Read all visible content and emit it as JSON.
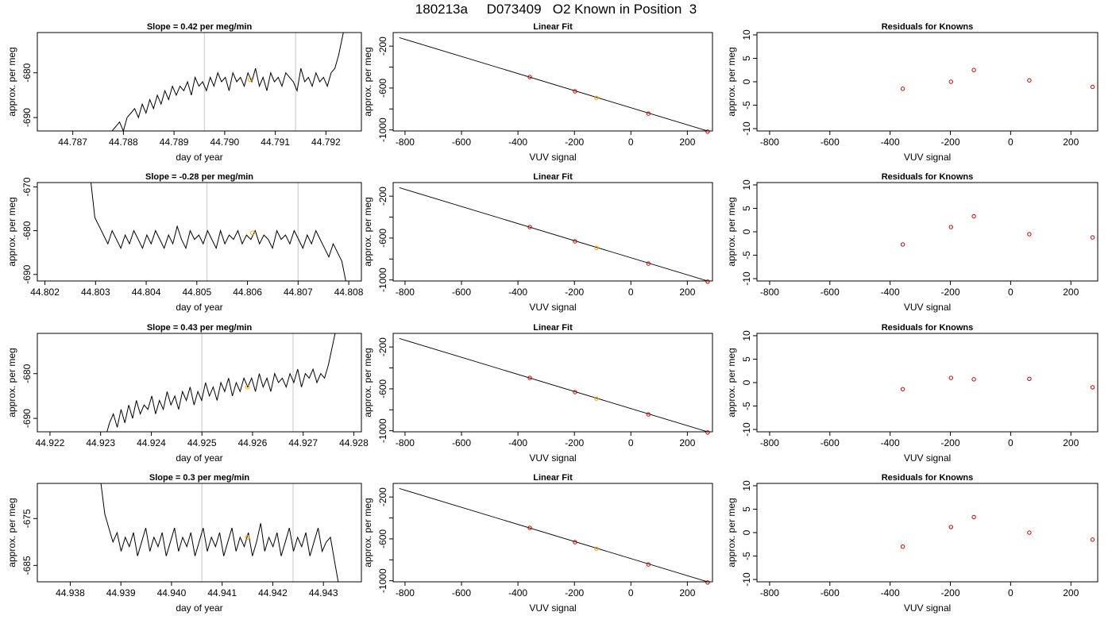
{
  "page": {
    "title": "180213a     D073409   O2 Known in Position  3"
  },
  "colors": {
    "line": "#000000",
    "vline": "#d3d3d3",
    "marker": "#ffa500",
    "residual": "#cc0000"
  },
  "chart_data": [
    {
      "type": "line",
      "title": "Slope =  0.42  per meg/min",
      "xlabel": "day of year",
      "ylabel": "approx. per meg",
      "xlim": [
        44.7863,
        44.7927
      ],
      "ylim": [
        -693.0,
        -671.0
      ],
      "xticks": [
        44.787,
        44.788,
        44.789,
        44.79,
        44.791,
        44.792
      ],
      "xtick_labels": [
        "44.787",
        "44.788",
        "44.789",
        "44.790",
        "44.791",
        "44.792"
      ],
      "yticks": [
        -680,
        -690
      ],
      "ytick_labels": [
        "-680",
        "-690"
      ],
      "vlines": [
        44.7896,
        44.7914
      ],
      "marker": {
        "x": 44.7905,
        "y": -681.5
      },
      "series": [
        {
          "x_start": 44.7877,
          "x_end": 44.7924,
          "values": [
            -694,
            -693,
            -692,
            -691,
            -693,
            -690,
            -689,
            -688,
            -690,
            -687,
            -689,
            -686,
            -688,
            -685,
            -687,
            -684,
            -686,
            -683,
            -685,
            -683,
            -684,
            -682,
            -685,
            -681,
            -683,
            -682,
            -684,
            -681,
            -683,
            -680,
            -682,
            -681,
            -684,
            -680,
            -682,
            -681,
            -683,
            -680,
            -682,
            -679,
            -683,
            -681,
            -684,
            -680,
            -682,
            -681,
            -683,
            -680,
            -681,
            -682,
            -684,
            -679,
            -682,
            -681,
            -683,
            -680,
            -682,
            -681,
            -683,
            -680,
            -679,
            -676,
            -672,
            -668
          ]
        }
      ]
    },
    {
      "type": "line",
      "title": "Slope =  -0.28  per meg/min",
      "xlabel": "day of year",
      "ylabel": "approx. per meg",
      "xlim": [
        44.80185,
        44.80825
      ],
      "ylim": [
        -691.5,
        -669.0
      ],
      "xticks": [
        44.802,
        44.803,
        44.804,
        44.805,
        44.806,
        44.807,
        44.808
      ],
      "xtick_labels": [
        "44.802",
        "44.803",
        "44.804",
        "44.805",
        "44.806",
        "44.807",
        "44.808"
      ],
      "yticks": [
        -670,
        -680,
        -690
      ],
      "ytick_labels": [
        "-670",
        "-680",
        "-690"
      ],
      "vlines": [
        44.8052,
        44.807
      ],
      "marker": {
        "x": 44.8061,
        "y": -680.5
      },
      "series": [
        {
          "x_start": 44.8029,
          "x_end": 44.80795,
          "values": [
            -668,
            -677,
            -679,
            -681,
            -683,
            -680,
            -682,
            -684,
            -681,
            -683,
            -680,
            -682,
            -684,
            -681,
            -683,
            -680,
            -682,
            -684,
            -681,
            -683,
            -679,
            -682,
            -684,
            -680,
            -682,
            -681,
            -683,
            -680,
            -682,
            -684,
            -680,
            -683,
            -681,
            -682,
            -680,
            -683,
            -681,
            -682,
            -680,
            -683,
            -681,
            -682,
            -684,
            -680,
            -682,
            -681,
            -683,
            -680,
            -682,
            -684,
            -681,
            -683,
            -680,
            -682,
            -684,
            -686,
            -683,
            -685,
            -687,
            -692
          ]
        }
      ]
    },
    {
      "type": "line",
      "title": "Slope =  0.43  per meg/min",
      "xlabel": "day of year",
      "ylabel": "approx. per meg",
      "xlim": [
        44.92175,
        44.92815
      ],
      "ylim": [
        -693.0,
        -671.0
      ],
      "xticks": [
        44.922,
        44.923,
        44.924,
        44.925,
        44.926,
        44.927,
        44.928
      ],
      "xtick_labels": [
        "44.922",
        "44.923",
        "44.924",
        "44.925",
        "44.926",
        "44.927",
        "44.928"
      ],
      "yticks": [
        -680,
        -690
      ],
      "ytick_labels": [
        "-680",
        "-690"
      ],
      "vlines": [
        44.925,
        44.9268
      ],
      "marker": {
        "x": 44.9259,
        "y": -683
      },
      "series": [
        {
          "x_start": 44.9231,
          "x_end": 44.92765,
          "values": [
            -694,
            -691,
            -689,
            -692,
            -688,
            -691,
            -687,
            -690,
            -686,
            -689,
            -687,
            -688,
            -685,
            -689,
            -686,
            -688,
            -684,
            -687,
            -685,
            -688,
            -684,
            -686,
            -683,
            -687,
            -684,
            -686,
            -682,
            -685,
            -683,
            -686,
            -682,
            -684,
            -681,
            -685,
            -682,
            -684,
            -681,
            -683,
            -681,
            -684,
            -680,
            -683,
            -681,
            -684,
            -680,
            -682,
            -681,
            -683,
            -680,
            -682,
            -679,
            -683,
            -680,
            -681,
            -679,
            -682,
            -680,
            -681,
            -678,
            -674,
            -670
          ]
        }
      ]
    },
    {
      "type": "line",
      "title": "Slope =  0.3  per meg/min",
      "xlabel": "day of year",
      "ylabel": "approx. per meg",
      "xlim": [
        44.93735,
        44.94375
      ],
      "ylim": [
        -688.5,
        -667.5
      ],
      "xticks": [
        44.938,
        44.939,
        44.94,
        44.941,
        44.942,
        44.943
      ],
      "xtick_labels": [
        "44.938",
        "44.939",
        "44.940",
        "44.941",
        "44.942",
        "44.943"
      ],
      "yticks": [
        -675,
        -685
      ],
      "ytick_labels": [
        "-675",
        "-685"
      ],
      "vlines": [
        44.9406,
        44.9424
      ],
      "marker": {
        "x": 44.9415,
        "y": -679
      },
      "series": [
        {
          "x_start": 44.9386,
          "x_end": 44.9433,
          "values": [
            -667,
            -674,
            -677,
            -680,
            -678,
            -682,
            -679,
            -681,
            -678,
            -683,
            -680,
            -677,
            -682,
            -679,
            -681,
            -678,
            -683,
            -680,
            -677,
            -682,
            -679,
            -681,
            -678,
            -683,
            -680,
            -677,
            -682,
            -679,
            -681,
            -678,
            -683,
            -680,
            -677,
            -682,
            -679,
            -681,
            -678,
            -683,
            -680,
            -676,
            -682,
            -679,
            -681,
            -678,
            -683,
            -680,
            -677,
            -682,
            -679,
            -681,
            -678,
            -683,
            -680,
            -677,
            -682,
            -680,
            -679,
            -684,
            -689
          ]
        }
      ]
    },
    {
      "type": "scatter",
      "title": "Linear Fit",
      "xlabel": "VUV signal",
      "ylabel": "approx. per meg",
      "xlim": [
        -842,
        289
      ],
      "ylim": [
        -1010,
        -70
      ],
      "xticks": [
        -800,
        -600,
        -400,
        -200,
        0,
        200
      ],
      "xtick_labels": [
        "-800",
        "-600",
        "-400",
        "-200",
        "0",
        "200"
      ],
      "yticks": [
        -200,
        -400,
        -600,
        -800,
        -1000
      ],
      "ytick_labels": [
        "-200",
        "",
        "-600",
        "",
        "-1000"
      ],
      "fit_line": [
        [
          -820,
          -119
        ],
        [
          272,
          -1010
        ]
      ],
      "x": [
        -358,
        -198,
        -122,
        62,
        272
      ],
      "y": [
        -495,
        -631,
        -693,
        -844,
        -1016
      ],
      "highlight_index": 2
    },
    {
      "type": "scatter",
      "title": "Linear Fit",
      "xlabel": "VUV signal",
      "ylabel": "approx. per meg",
      "xlim": [
        -842,
        289
      ],
      "ylim": [
        -1010,
        -70
      ],
      "xticks": [
        -800,
        -600,
        -400,
        -200,
        0,
        200
      ],
      "xtick_labels": [
        "-800",
        "-600",
        "-400",
        "-200",
        "0",
        "200"
      ],
      "yticks": [
        -200,
        -400,
        -600,
        -800,
        -1000
      ],
      "ytick_labels": [
        "-200",
        "",
        "-600",
        "",
        "-1000"
      ],
      "fit_line": [
        [
          -820,
          -119
        ],
        [
          272,
          -1010
        ]
      ],
      "x": [
        -358,
        -198,
        -122,
        62,
        272
      ],
      "y": [
        -495,
        -631,
        -693,
        -844,
        -1016
      ],
      "highlight_index": 2
    },
    {
      "type": "scatter",
      "title": "Linear Fit",
      "xlabel": "VUV signal",
      "ylabel": "approx. per meg",
      "xlim": [
        -842,
        289
      ],
      "ylim": [
        -1010,
        -70
      ],
      "xticks": [
        -800,
        -600,
        -400,
        -200,
        0,
        200
      ],
      "xtick_labels": [
        "-800",
        "-600",
        "-400",
        "-200",
        "0",
        "200"
      ],
      "yticks": [
        -200,
        -400,
        -600,
        -800,
        -1000
      ],
      "ytick_labels": [
        "-200",
        "",
        "-600",
        "",
        "-1000"
      ],
      "fit_line": [
        [
          -820,
          -119
        ],
        [
          272,
          -1010
        ]
      ],
      "x": [
        -358,
        -198,
        -122,
        62,
        272
      ],
      "y": [
        -495,
        -631,
        -693,
        -844,
        -1016
      ],
      "highlight_index": 2
    },
    {
      "type": "scatter",
      "title": "Linear Fit",
      "xlabel": "VUV signal",
      "ylabel": "approx. per meg",
      "xlim": [
        -842,
        289
      ],
      "ylim": [
        -1010,
        -70
      ],
      "xticks": [
        -800,
        -600,
        -400,
        -200,
        0,
        200
      ],
      "xtick_labels": [
        "-800",
        "-600",
        "-400",
        "-200",
        "0",
        "200"
      ],
      "yticks": [
        -200,
        -400,
        -600,
        -800,
        -1000
      ],
      "ytick_labels": [
        "-200",
        "",
        "-600",
        "",
        "-1000"
      ],
      "fit_line": [
        [
          -820,
          -119
        ],
        [
          272,
          -1010
        ]
      ],
      "x": [
        -358,
        -198,
        -122,
        62,
        272
      ],
      "y": [
        -495,
        -631,
        -693,
        -844,
        -1016
      ],
      "highlight_index": 2
    },
    {
      "type": "scatter",
      "title": "Residuals for Knowns",
      "xlabel": "VUV signal",
      "ylabel": "approx. per meg",
      "xlim": [
        -842,
        289
      ],
      "ylim": [
        -10.5,
        10.5
      ],
      "xticks": [
        -800,
        -600,
        -400,
        -200,
        0,
        200
      ],
      "xtick_labels": [
        "-800",
        "-600",
        "-400",
        "-200",
        "0",
        "200"
      ],
      "yticks": [
        10,
        5,
        0,
        -5,
        -10
      ],
      "ytick_labels": [
        "10",
        "5",
        "0",
        "-5",
        "-10"
      ],
      "x": [
        -358,
        -198,
        -122,
        62,
        272
      ],
      "y": [
        -1.5,
        0.0,
        2.5,
        0.3,
        -1.1
      ]
    },
    {
      "type": "scatter",
      "title": "Residuals for Knowns",
      "xlabel": "VUV signal",
      "ylabel": "approx. per meg",
      "xlim": [
        -842,
        289
      ],
      "ylim": [
        -10.5,
        10.5
      ],
      "xticks": [
        -800,
        -600,
        -400,
        -200,
        0,
        200
      ],
      "xtick_labels": [
        "-800",
        "-600",
        "-400",
        "-200",
        "0",
        "200"
      ],
      "yticks": [
        10,
        5,
        0,
        -5,
        -10
      ],
      "ytick_labels": [
        "10",
        "5",
        "0",
        "-5",
        "-10"
      ],
      "x": [
        -358,
        -198,
        -122,
        62,
        272
      ],
      "y": [
        -2.7,
        1.0,
        3.3,
        -0.5,
        -1.2
      ]
    },
    {
      "type": "scatter",
      "title": "Residuals for Knowns",
      "xlabel": "VUV signal",
      "ylabel": "approx. per meg",
      "xlim": [
        -842,
        289
      ],
      "ylim": [
        -10.5,
        10.5
      ],
      "xticks": [
        -800,
        -600,
        -400,
        -200,
        0,
        200
      ],
      "xtick_labels": [
        "-800",
        "-600",
        "-400",
        "-200",
        "0",
        "200"
      ],
      "yticks": [
        10,
        5,
        0,
        -5,
        -10
      ],
      "ytick_labels": [
        "10",
        "5",
        "0",
        "-5",
        "-10"
      ],
      "x": [
        -358,
        -198,
        -122,
        62,
        272
      ],
      "y": [
        -1.4,
        1.0,
        0.7,
        0.8,
        -1.0
      ]
    },
    {
      "type": "scatter",
      "title": "Residuals for Knowns",
      "xlabel": "VUV signal",
      "ylabel": "approx. per meg",
      "xlim": [
        -842,
        289
      ],
      "ylim": [
        -10.5,
        10.5
      ],
      "xticks": [
        -800,
        -600,
        -400,
        -200,
        0,
        200
      ],
      "xtick_labels": [
        "-800",
        "-600",
        "-400",
        "-200",
        "0",
        "200"
      ],
      "yticks": [
        10,
        5,
        0,
        -5,
        -10
      ],
      "ytick_labels": [
        "10",
        "5",
        "0",
        "-5",
        "-10"
      ],
      "x": [
        -358,
        -198,
        -122,
        62,
        272
      ],
      "y": [
        -3.0,
        1.2,
        3.3,
        0.0,
        -1.5
      ]
    }
  ]
}
